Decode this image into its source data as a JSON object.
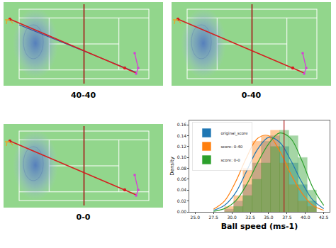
{
  "chart_data": {
    "type": "histogram",
    "x_label": "Ball speed (ms-1)",
    "y_label": "Density",
    "xlim": [
      24.2,
      43.3
    ],
    "xticks": [
      {
        "value": 25,
        "label": "25.0"
      },
      {
        "value": 27.5,
        "label": "27.5"
      },
      {
        "value": 30,
        "label": "30.0"
      },
      {
        "value": 32.5,
        "label": "32.5"
      },
      {
        "value": 35,
        "label": "35.0"
      },
      {
        "value": 37.5,
        "label": "37.5"
      },
      {
        "value": 40,
        "label": "40.0"
      },
      {
        "value": 42.5,
        "label": "42.5"
      }
    ],
    "ylim": [
      0,
      0.168
    ],
    "yticks": [
      {
        "value": 0,
        "label": "0.00"
      },
      {
        "value": 0.02,
        "label": "0.02"
      },
      {
        "value": 0.04,
        "label": "0.04"
      },
      {
        "value": 0.06,
        "label": "0.06"
      },
      {
        "value": 0.08,
        "label": "0.08"
      },
      {
        "value": 0.1,
        "label": "0.10"
      },
      {
        "value": 0.12,
        "label": "0.12"
      },
      {
        "value": 0.14,
        "label": "0.14"
      },
      {
        "value": 0.16,
        "label": "0.16"
      }
    ],
    "legend": "top-left",
    "bins": [
      29.0,
      30.25,
      31.5,
      32.75,
      34.0,
      35.25,
      36.5,
      37.75,
      39.0,
      40.25,
      41.5
    ],
    "kde_x": [
      27.5,
      29,
      30.5,
      32,
      33.5,
      35,
      36.5,
      38,
      39.5,
      41,
      42.5
    ],
    "series": [
      {
        "name": "original_score",
        "color": "#1f77b4",
        "values": [
          0.005,
          0.02,
          0.05,
          0.09,
          0.13,
          0.14,
          0.12,
          0.09,
          0.05,
          0.02
        ],
        "kde": [
          0.003,
          0.012,
          0.035,
          0.075,
          0.115,
          0.137,
          0.128,
          0.095,
          0.055,
          0.022,
          0.006
        ]
      },
      {
        "name": "score: 0-40",
        "color": "#ff7f0e",
        "values": [
          0.01,
          0.03,
          0.08,
          0.13,
          0.14,
          0.15,
          0.09,
          0.05,
          0.02,
          0.01
        ],
        "kde": [
          0.005,
          0.02,
          0.055,
          0.1,
          0.135,
          0.14,
          0.112,
          0.07,
          0.035,
          0.012,
          0.003
        ]
      },
      {
        "name": "score: 0-0",
        "color": "#2ca02c",
        "values": [
          0.0,
          0.01,
          0.03,
          0.06,
          0.09,
          0.12,
          0.15,
          0.14,
          0.1,
          0.04
        ],
        "kde": [
          0.001,
          0.006,
          0.02,
          0.05,
          0.09,
          0.125,
          0.145,
          0.135,
          0.095,
          0.045,
          0.012
        ]
      }
    ],
    "reference_line": {
      "value": 37.1,
      "color": "#b22222"
    }
  },
  "court_panels": [
    {
      "caption": "40-40",
      "trajectory_colors": [
        "#d42020",
        "#3a4aa0"
      ]
    },
    {
      "caption": "0-40",
      "trajectory_colors": [
        "#d42020"
      ]
    },
    {
      "caption": "0-0",
      "trajectory_colors": [
        "#d42020"
      ]
    }
  ]
}
